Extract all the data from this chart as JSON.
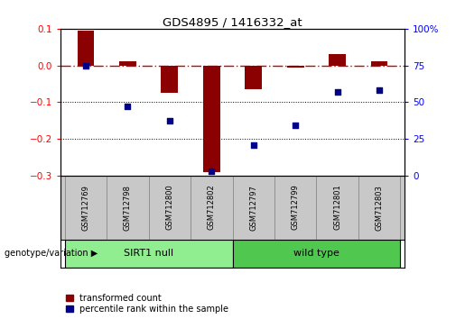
{
  "title": "GDS4895 / 1416332_at",
  "samples": [
    "GSM712769",
    "GSM712798",
    "GSM712800",
    "GSM712802",
    "GSM712797",
    "GSM712799",
    "GSM712801",
    "GSM712803"
  ],
  "bar_values": [
    0.095,
    0.01,
    -0.075,
    -0.29,
    -0.065,
    -0.005,
    0.03,
    0.01
  ],
  "dot_values": [
    75,
    47,
    37,
    3,
    21,
    34,
    57,
    58
  ],
  "ylim_left": [
    -0.3,
    0.1
  ],
  "ylim_right": [
    0,
    100
  ],
  "yticks_left": [
    -0.3,
    -0.2,
    -0.1,
    0.0,
    0.1
  ],
  "yticks_right": [
    0,
    25,
    50,
    75,
    100
  ],
  "bar_color": "#8B0000",
  "dot_color": "#00008B",
  "zero_line_color": "#CC0000",
  "bg_color": "#ffffff",
  "legend_bar_label": "transformed count",
  "legend_dot_label": "percentile rank within the sample",
  "genotype_label": "genotype/variation",
  "group1_label": "SIRT1 null",
  "group1_color": "#90EE90",
  "group2_label": "wild type",
  "group2_color": "#50C850",
  "sample_bg": "#C8C8C8",
  "figsize": [
    5.15,
    3.54
  ],
  "dpi": 100
}
